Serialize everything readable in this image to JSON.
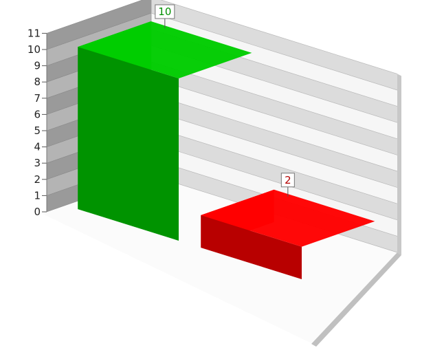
{
  "chart_data": {
    "type": "bar",
    "categories": [
      "",
      ""
    ],
    "values": [
      10,
      2
    ],
    "colors": [
      "#00cc00",
      "#ff0000"
    ],
    "data_labels": [
      "10",
      "2"
    ],
    "ylim": [
      0,
      11
    ],
    "yticks": [
      "0",
      "1",
      "2",
      "3",
      "4",
      "5",
      "6",
      "7",
      "8",
      "9",
      "10",
      "11"
    ],
    "grid": true,
    "style": "3d",
    "title": "",
    "xlabel": "",
    "ylabel": ""
  }
}
